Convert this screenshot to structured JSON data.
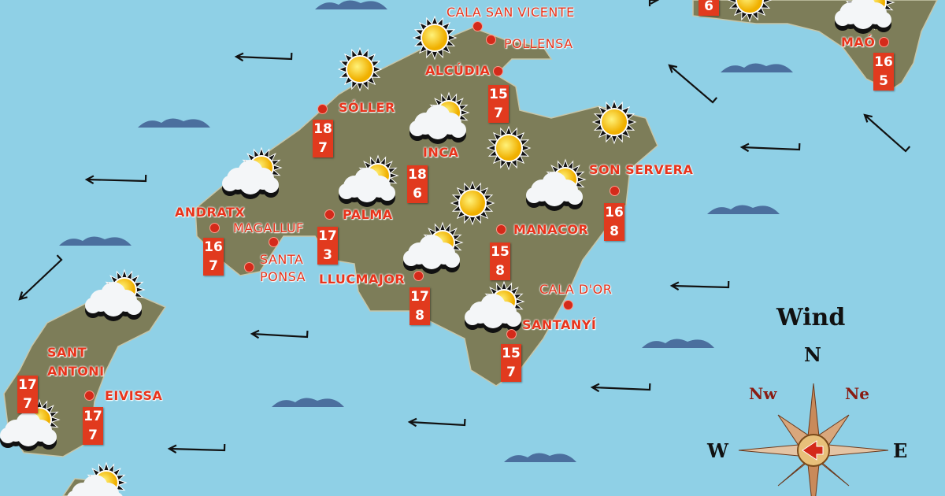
{
  "colors": {
    "sea": "#8fd0e6",
    "land": "#7d7b55",
    "label": "#e8341c",
    "temp_box": "#e13a1e",
    "wave": "#4b6f9e"
  },
  "cities": [
    {
      "name": "CALA SAN VICENTE"
    },
    {
      "name": "POLLENSA"
    },
    {
      "name": "ALCÚDIA",
      "max": "15",
      "min": "7"
    },
    {
      "name": "SÓLLER",
      "max": "18",
      "min": "7"
    },
    {
      "name": "INCA",
      "max": "18",
      "min": "6"
    },
    {
      "name": "SON SERVERA",
      "max": "16",
      "min": "8"
    },
    {
      "name": "ANDRATX",
      "max": "16",
      "min": "7"
    },
    {
      "name": "MAGALLUF"
    },
    {
      "name": "PALMA",
      "max": "17",
      "min": "3"
    },
    {
      "name": "MANACOR",
      "max": "15",
      "min": "8"
    },
    {
      "name": "SANTA",
      "name2": "PONSA"
    },
    {
      "name": "LLUCMAJOR",
      "max": "17",
      "min": "8"
    },
    {
      "name": "CALA D'OR"
    },
    {
      "name": "SANTANYÍ",
      "max": "15",
      "min": "7"
    },
    {
      "name": "SANT",
      "name2": "ANTONI",
      "max": "17",
      "min": "7"
    },
    {
      "name": "EIVISSA",
      "max": "17",
      "min": "7"
    },
    {
      "name": "MAÓ",
      "max": "16",
      "min": "5"
    },
    {
      "min": "6"
    }
  ],
  "weather_icons": [
    "sun",
    "sun",
    "sun-cloud",
    "sun",
    "sun-cloud",
    "sun-cloud",
    "sun",
    "sun",
    "sun-cloud",
    "sun-cloud",
    "sun",
    "sun-cloud",
    "sun-cloud",
    "sun",
    "sun-cloud",
    "sun-cloud",
    "sun-cloud"
  ],
  "wind_arrows": [
    "west",
    "west",
    "west",
    "west",
    "west",
    "west",
    "west",
    "west",
    "west",
    "southwest",
    "northwest",
    "northwest",
    "northeast"
  ],
  "compass": {
    "title": "Wind",
    "n": "N",
    "nw": "Nw",
    "ne": "Ne",
    "w": "W",
    "e": "E",
    "current_direction": "west"
  }
}
